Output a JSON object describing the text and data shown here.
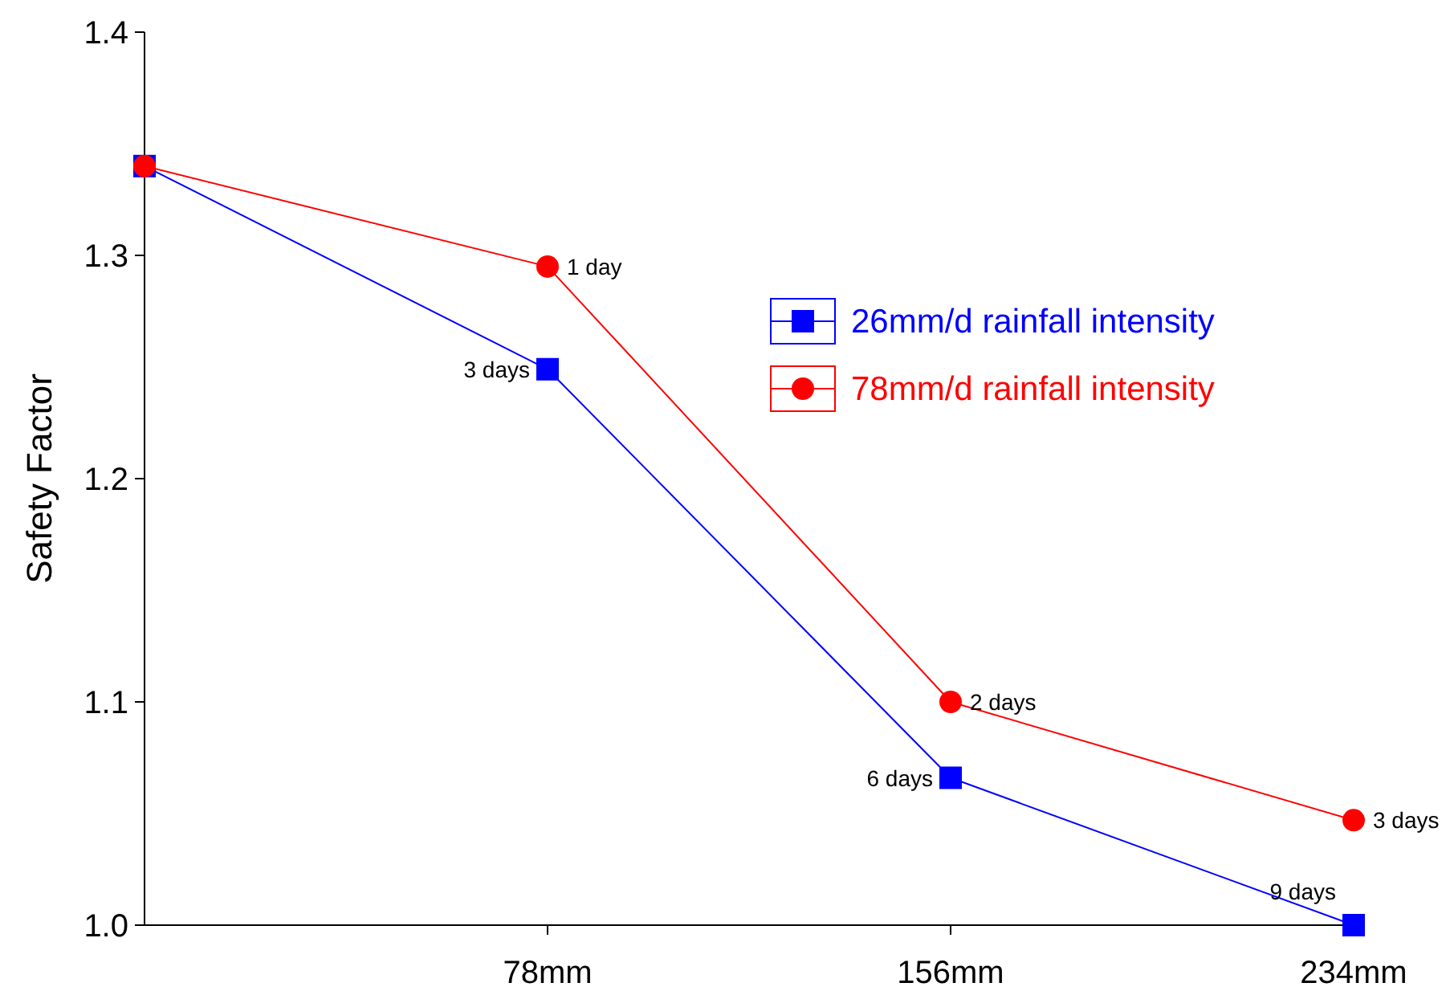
{
  "chart_data": {
    "type": "line",
    "ylabel": "Safety Factor",
    "x": [
      0,
      78,
      156,
      234
    ],
    "xlim": [
      0,
      234
    ],
    "xticks": [
      {
        "value": 78,
        "label": "78mm"
      },
      {
        "value": 156,
        "label": "156mm"
      },
      {
        "value": 234,
        "label": "234mm"
      }
    ],
    "ylim": [
      1.0,
      1.4
    ],
    "yticks": [
      {
        "value": 1.0,
        "label": "1.0"
      },
      1.1,
      1.2,
      1.3,
      1.4
    ],
    "grid": false,
    "legend": "right",
    "series": [
      {
        "name": "26mm/d rainfall intensity",
        "color": "#0000ff",
        "marker": "square",
        "values": [
          1.34,
          1.249,
          1.066,
          1.0
        ]
      },
      {
        "name": "78mm/d rainfall intensity",
        "color": "#ff0000",
        "marker": "circle",
        "values": [
          1.34,
          1.295,
          1.1,
          1.047
        ]
      }
    ],
    "annotations": [
      {
        "text": "1 day",
        "x": 78,
        "y": 1.295
      },
      {
        "text": "3 days",
        "x": 78,
        "y": 1.249
      },
      {
        "text": "2 days",
        "x": 156,
        "y": 1.1
      },
      {
        "text": "6 days",
        "x": 156,
        "y": 1.066
      },
      {
        "text": "3 days",
        "x": 234,
        "y": 1.047
      },
      {
        "text": "9 days",
        "x": 234,
        "y": 1.0
      }
    ]
  }
}
